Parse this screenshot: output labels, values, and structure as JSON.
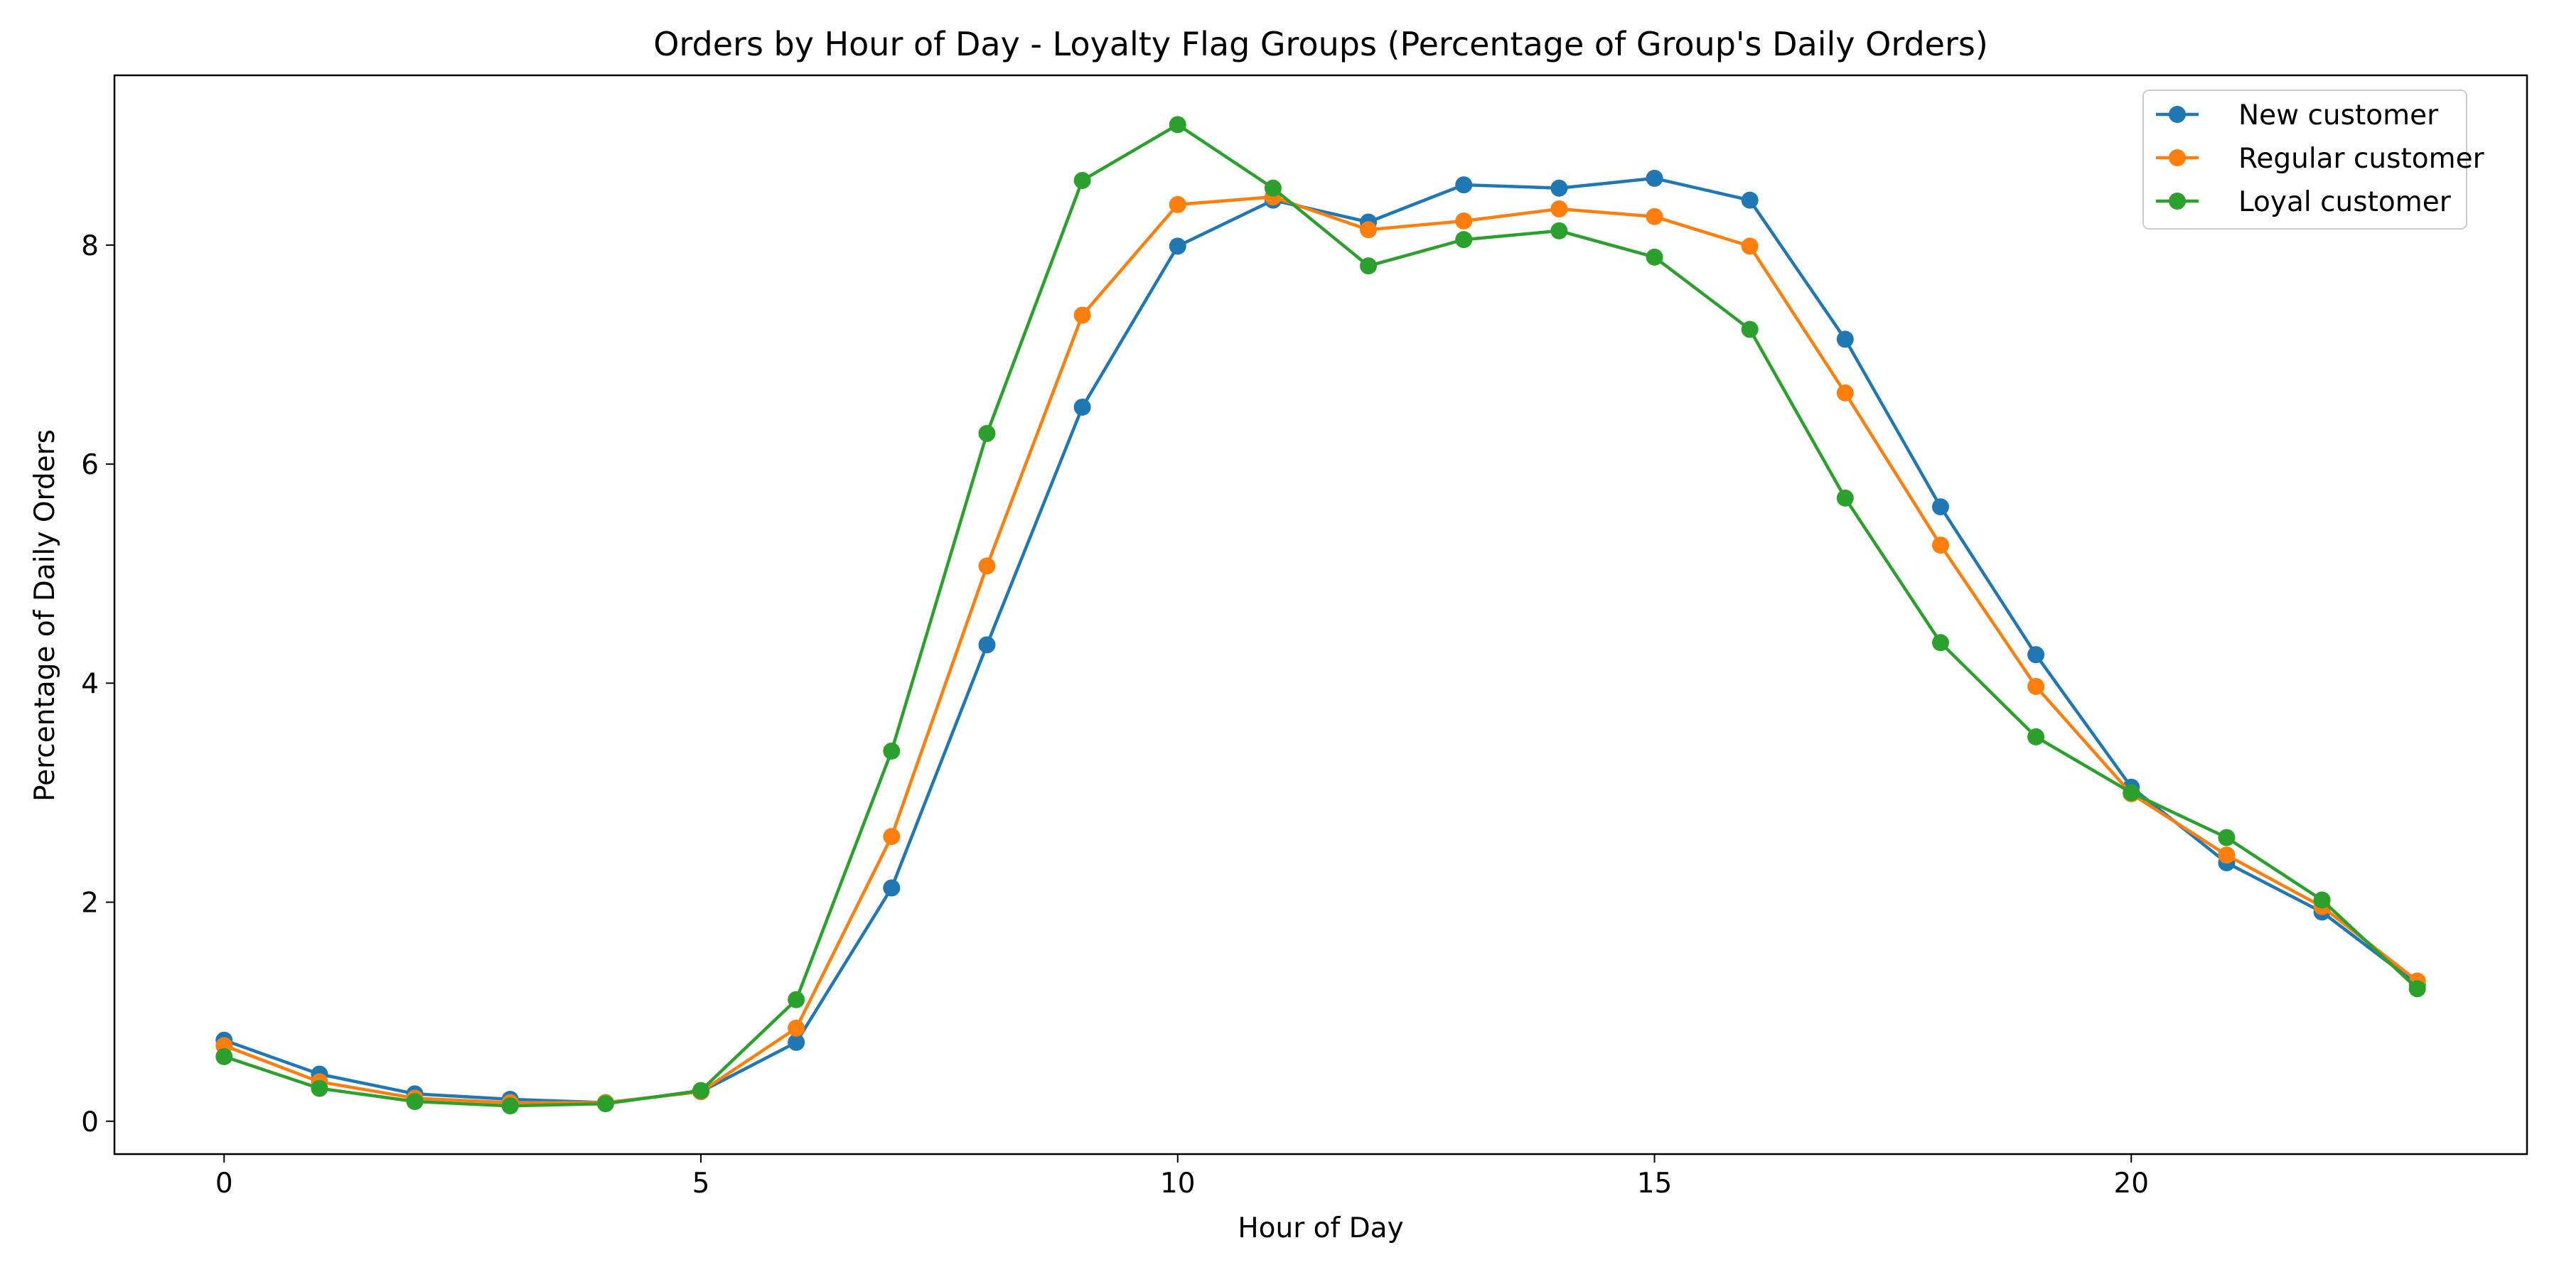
{
  "chart_data": {
    "type": "line",
    "title": "Orders by Hour of Day - Loyalty Flag Groups (Percentage of Group's Daily Orders)",
    "xlabel": "Hour of Day",
    "ylabel": "Percentage of Daily Orders",
    "xlim": [
      -1.15,
      24.15
    ],
    "ylim": [
      -0.3,
      9.55
    ],
    "xticks": [
      0,
      5,
      10,
      15,
      20
    ],
    "yticks": [
      0,
      2,
      4,
      6,
      8
    ],
    "grid": false,
    "legend_position": "top-right",
    "x": [
      0,
      1,
      2,
      3,
      4,
      5,
      6,
      7,
      8,
      9,
      10,
      11,
      12,
      13,
      14,
      15,
      16,
      17,
      18,
      19,
      20,
      21,
      22,
      23
    ],
    "series": [
      {
        "name": "New customer",
        "color": "#1f77b4",
        "values": [
          0.74,
          0.43,
          0.25,
          0.2,
          0.17,
          0.27,
          0.72,
          2.13,
          4.35,
          6.52,
          7.99,
          8.41,
          8.21,
          8.55,
          8.52,
          8.61,
          8.41,
          7.14,
          5.61,
          4.26,
          3.05,
          2.36,
          1.91,
          1.25
        ]
      },
      {
        "name": "Regular customer",
        "color": "#ff7f0e",
        "values": [
          0.69,
          0.36,
          0.21,
          0.17,
          0.17,
          0.27,
          0.85,
          2.6,
          5.07,
          7.36,
          8.37,
          8.44,
          8.14,
          8.22,
          8.33,
          8.26,
          7.99,
          6.65,
          5.26,
          3.97,
          2.99,
          2.43,
          1.96,
          1.28
        ]
      },
      {
        "name": "Loyal customer",
        "color": "#2ca02c",
        "values": [
          0.59,
          0.3,
          0.18,
          0.14,
          0.16,
          0.28,
          1.11,
          3.38,
          6.28,
          8.59,
          9.1,
          8.52,
          7.81,
          8.05,
          8.13,
          7.89,
          7.23,
          5.69,
          4.37,
          3.51,
          3.0,
          2.59,
          2.02,
          1.21
        ]
      }
    ]
  }
}
